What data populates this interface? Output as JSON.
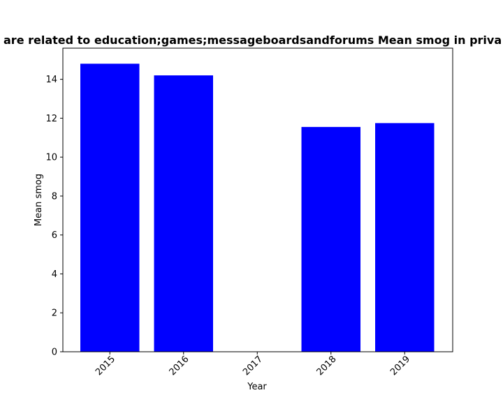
{
  "chart_data": {
    "type": "bar",
    "title": "are related to education;games;messageboardsandforums Mean smog in priva",
    "xlabel": "Year",
    "ylabel": "Mean smog",
    "categories": [
      "2015",
      "2016",
      "2017",
      "2018",
      "2019"
    ],
    "values": [
      14.8,
      14.2,
      0,
      11.55,
      11.75
    ],
    "ylim": [
      0,
      15.6
    ],
    "yticks": [
      0,
      2,
      4,
      6,
      8,
      10,
      12,
      14
    ],
    "bar_color": "#0000ff",
    "grid": false,
    "x_tick_rotation": 45
  }
}
